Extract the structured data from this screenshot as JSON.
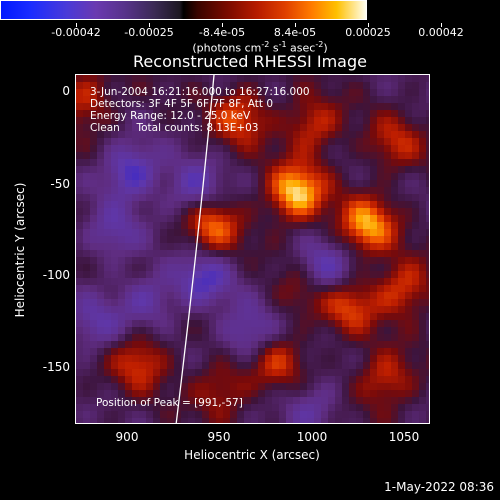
{
  "colorbar": {
    "labels": [
      "-0.00042",
      "-0.00025",
      "-8.4e-05",
      "8.4e-05",
      "0.00025",
      "0.00042"
    ],
    "units_main": "(photons cm",
    "units_sup1": "-2",
    "units_mid": " s",
    "units_sup2": "-1",
    "units_end": " asec",
    "units_sup3": "-2",
    "units_close": ")"
  },
  "plot": {
    "title": "Reconstructed RHESSI Image",
    "annotation_lines": [
      "3-Jun-2004 16:21:16.000 to 16:27:16.000",
      "Detectors: 3F 4F 5F 6F 7F 8F, Att 0",
      "Energy Range: 12.0 - 25.0 keV",
      "Clean     Total counts: 8.13E+03"
    ],
    "peak_label": "Position of Peak = [991,-57]",
    "x_ticks": [
      "900",
      "950",
      "1000",
      "1050"
    ],
    "y_ticks": [
      "0",
      "-50",
      "-100",
      "-150"
    ],
    "xlabel": "Heliocentric X (arcsec)",
    "ylabel": "Heliocentric Y (arcsec)"
  },
  "timestamp": "1-May-2022 08:36",
  "chart_data": {
    "type": "heatmap",
    "title": "Reconstructed RHESSI Image",
    "xlabel": "Heliocentric X (arcsec)",
    "ylabel": "Heliocentric Y (arcsec)",
    "xlim": [
      870,
      1065
    ],
    "ylim": [
      -185,
      8
    ],
    "colorbar_range": [
      -0.00042,
      0.00042
    ],
    "colorbar_ticks": [
      -0.00042,
      -0.00025,
      -8.4e-05,
      8.4e-05,
      0.00025,
      0.00042
    ],
    "peak": [
      991,
      -57
    ],
    "limb_line": true,
    "hotspots": [
      {
        "x": 991,
        "y": -57,
        "v": 1.0
      },
      {
        "x": 1030,
        "y": -75,
        "v": 0.85
      },
      {
        "x": 945,
        "y": -75,
        "v": 0.7
      },
      {
        "x": 960,
        "y": -15,
        "v": 0.6
      },
      {
        "x": 1000,
        "y": -20,
        "v": 0.55
      },
      {
        "x": 1050,
        "y": -110,
        "v": 0.6
      },
      {
        "x": 1020,
        "y": -120,
        "v": 0.55
      },
      {
        "x": 1040,
        "y": -160,
        "v": 0.55
      },
      {
        "x": 980,
        "y": -150,
        "v": 0.5
      },
      {
        "x": 905,
        "y": -150,
        "v": 0.55
      },
      {
        "x": 950,
        "y": -165,
        "v": 0.45
      },
      {
        "x": 875,
        "y": -5,
        "v": 0.5
      },
      {
        "x": 995,
        "y": -110,
        "v": 0.4
      },
      {
        "x": 1045,
        "y": -30,
        "v": 0.45
      }
    ],
    "coldspots": [
      {
        "x": 900,
        "y": -45,
        "v": -0.7
      },
      {
        "x": 935,
        "y": -55,
        "v": -0.55
      },
      {
        "x": 940,
        "y": -105,
        "v": -0.6
      },
      {
        "x": 965,
        "y": -135,
        "v": -0.55
      },
      {
        "x": 1005,
        "y": -100,
        "v": -0.65
      },
      {
        "x": 880,
        "y": -130,
        "v": -0.45
      },
      {
        "x": 910,
        "y": -115,
        "v": -0.45
      },
      {
        "x": 1000,
        "y": -175,
        "v": -0.4
      },
      {
        "x": 890,
        "y": -80,
        "v": -0.45
      }
    ]
  }
}
